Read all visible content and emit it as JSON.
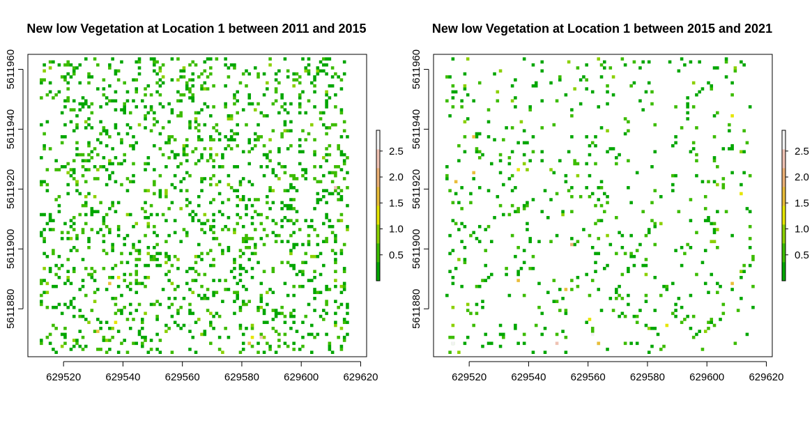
{
  "chart_data": [
    {
      "type": "heatmap",
      "title": "New low Vegetation at Location 1 between 2011 and 2015",
      "xlabel": "",
      "ylabel": "",
      "xlim": [
        629508,
        629622
      ],
      "ylim": [
        5611864,
        5611965
      ],
      "xticks": [
        629520,
        629540,
        629560,
        629580,
        629600,
        629620
      ],
      "yticks": [
        5611880,
        5611900,
        5611920,
        5611940,
        5611960
      ],
      "legend": {
        "placement": "right",
        "range": [
          0,
          2.9
        ],
        "ticks": [
          "0.5",
          "1.0",
          "1.5",
          "2.0",
          "2.5"
        ],
        "colors": [
          "#00a600",
          "#3cbc00",
          "#8bd000",
          "#e6e600",
          "#e9bd3a",
          "#ecb176",
          "#efc2b3",
          "#f2f2f2"
        ]
      },
      "density": 0.14,
      "seed": 11,
      "highlights": [
        {
          "x": 629535,
          "y": 5611888,
          "value": 1.5
        },
        {
          "x": 629538,
          "y": 5611890,
          "value": 1.1
        },
        {
          "x": 629531,
          "y": 5611872,
          "value": 1.6
        },
        {
          "x": 629537,
          "y": 5611875,
          "value": 1.4
        },
        {
          "x": 629582,
          "y": 5611868,
          "value": 1.8
        },
        {
          "x": 629583,
          "y": 5611870,
          "value": 1.3
        },
        {
          "x": 629586,
          "y": 5611870,
          "value": 2.5
        },
        {
          "x": 629562,
          "y": 5611874,
          "value": 2.6
        },
        {
          "x": 629611,
          "y": 5611920,
          "value": 2.3
        },
        {
          "x": 629524,
          "y": 5611922,
          "value": 1.0
        }
      ]
    },
    {
      "type": "heatmap",
      "title": "New low Vegetation at Location 1 between 2015 and 2021",
      "xlabel": "",
      "ylabel": "",
      "xlim": [
        629508,
        629622
      ],
      "ylim": [
        5611864,
        5611965
      ],
      "xticks": [
        629520,
        629540,
        629560,
        629580,
        629600,
        629620
      ],
      "yticks": [
        5611880,
        5611900,
        5611920,
        5611940,
        5611960
      ],
      "legend": {
        "placement": "right",
        "range": [
          0,
          2.9
        ],
        "ticks": [
          "0.5",
          "1.0",
          "1.5",
          "2.0",
          "2.5"
        ],
        "colors": [
          "#00a600",
          "#3cbc00",
          "#8bd000",
          "#e6e600",
          "#e9bd3a",
          "#ecb176",
          "#efc2b3",
          "#f2f2f2"
        ]
      },
      "density": 0.055,
      "seed": 23,
      "highlights": [
        {
          "x": 629515,
          "y": 5611922,
          "value": 1.6
        },
        {
          "x": 629521,
          "y": 5611925,
          "value": 1.8
        },
        {
          "x": 629521,
          "y": 5611937,
          "value": 1.5
        },
        {
          "x": 629536,
          "y": 5611926,
          "value": 1.3
        },
        {
          "x": 629554,
          "y": 5611901,
          "value": 1.9
        },
        {
          "x": 629552,
          "y": 5611886,
          "value": 1.7
        },
        {
          "x": 629561,
          "y": 5611871,
          "value": 2.6
        },
        {
          "x": 629563,
          "y": 5611868,
          "value": 1.6
        },
        {
          "x": 629560,
          "y": 5611876,
          "value": 1.4
        },
        {
          "x": 629549,
          "y": 5611868,
          "value": 2.4
        },
        {
          "x": 629536,
          "y": 5611889,
          "value": 1.7
        },
        {
          "x": 629608,
          "y": 5611888,
          "value": 1.6
        },
        {
          "x": 629611,
          "y": 5611918,
          "value": 1.4
        },
        {
          "x": 629586,
          "y": 5611874,
          "value": 1.2
        },
        {
          "x": 629608,
          "y": 5611944,
          "value": 1.1
        },
        {
          "x": 629514,
          "y": 5611868,
          "value": 2.7
        }
      ]
    }
  ]
}
